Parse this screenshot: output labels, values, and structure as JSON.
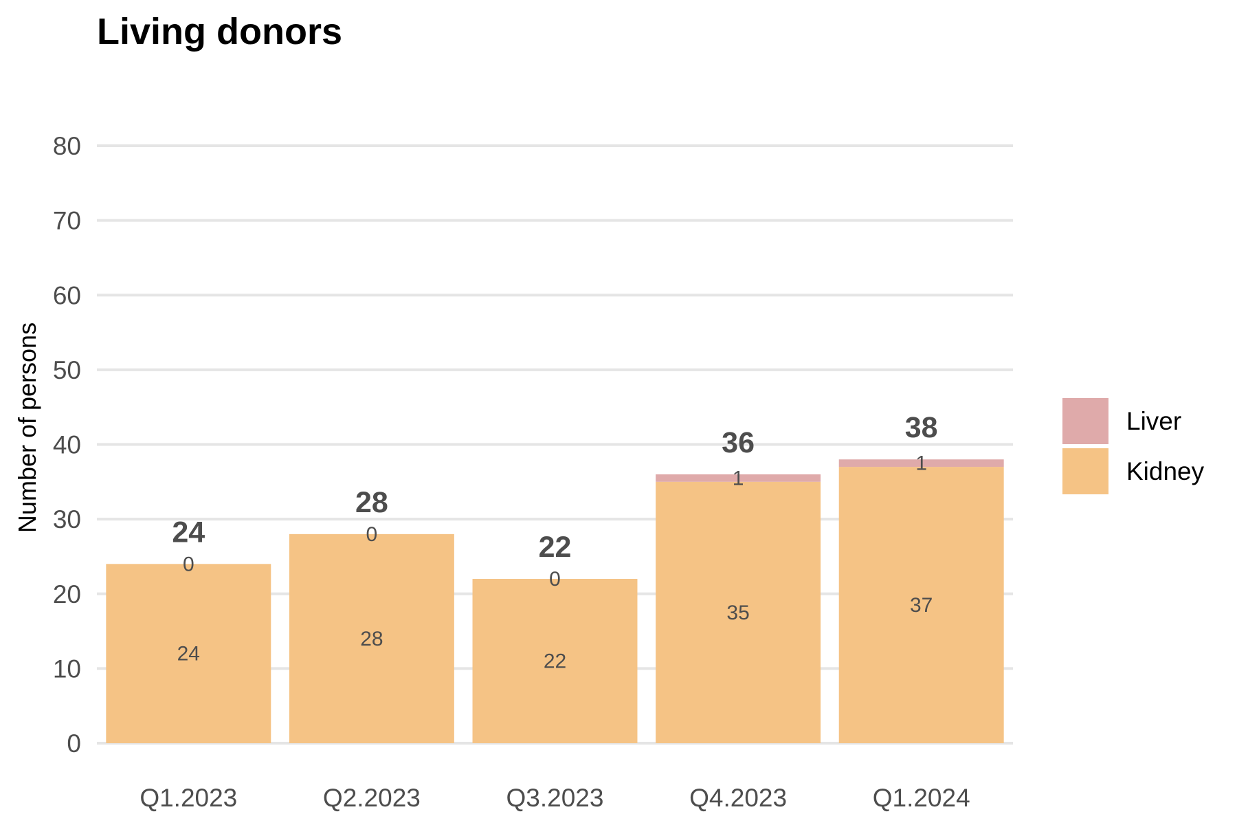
{
  "chart_data": {
    "type": "bar",
    "stacked": true,
    "title": "Living donors",
    "xlabel": "",
    "ylabel": "Number of persons",
    "ylim": [
      0,
      80
    ],
    "yticks": [
      0,
      10,
      20,
      30,
      40,
      50,
      60,
      70,
      80
    ],
    "grid": true,
    "legend_position": "right",
    "categories": [
      "Q1.2023",
      "Q2.2023",
      "Q3.2023",
      "Q4.2023",
      "Q1.2024"
    ],
    "series": [
      {
        "name": "Kidney",
        "color": "#f5c385",
        "values": [
          24,
          28,
          22,
          35,
          37
        ]
      },
      {
        "name": "Liver",
        "color": "#dfaaaa",
        "values": [
          0,
          0,
          0,
          1,
          1
        ]
      }
    ],
    "totals": [
      24,
      28,
      22,
      36,
      38
    ],
    "legend_order": [
      "Liver",
      "Kidney"
    ]
  }
}
